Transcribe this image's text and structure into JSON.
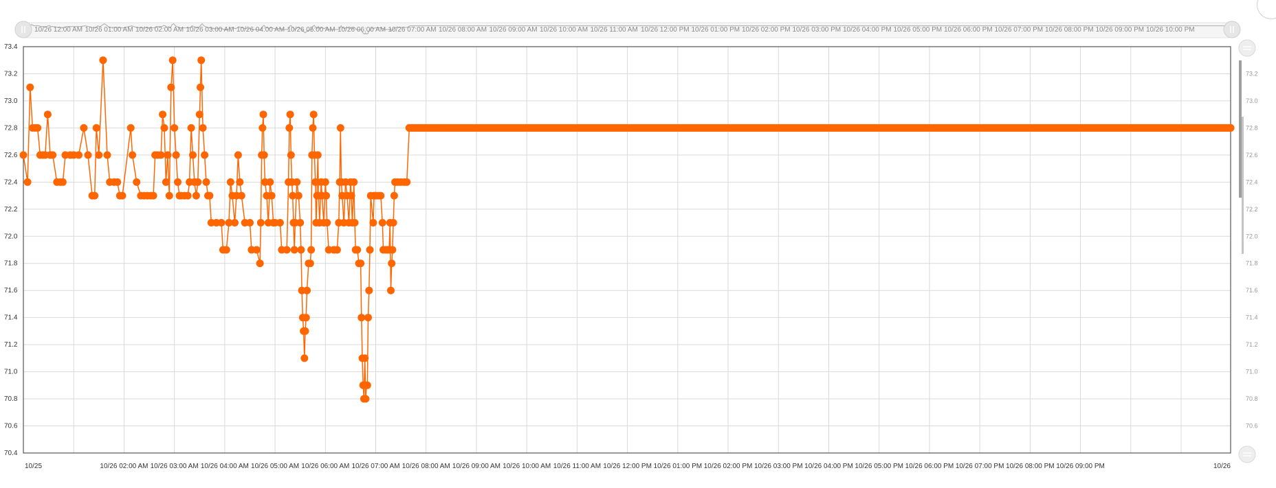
{
  "chart_data": {
    "type": "line",
    "title": "",
    "xlabel": "",
    "ylabel": "",
    "series_color": "#ff6600",
    "ylim": [
      70.4,
      73.4
    ],
    "xlim": [
      "10/26 12:00 AM",
      "10/26 11:59 PM"
    ],
    "y_ticks": [
      "73.4",
      "73.2",
      "73.0",
      "72.8",
      "72.6",
      "72.4",
      "72.2",
      "72.0",
      "71.8",
      "71.6",
      "71.4",
      "71.2",
      "71.0",
      "70.8",
      "70.6",
      "70.4"
    ],
    "right_ticks": [
      "73.2",
      "73.0",
      "72.8",
      "72.6",
      "72.4",
      "72.2",
      "72.0",
      "71.8",
      "71.6",
      "71.4",
      "71.2",
      "71.0",
      "70.8",
      "70.6"
    ],
    "x_tick_labels": [
      {
        "t": "10/25 12:00 AM",
        "label": "10/25"
      },
      {
        "t": "10/26 02:00 AM",
        "label": "10/26 02:00 AM"
      },
      {
        "t": "10/26 03:00 AM",
        "label": "10/26 03:00 AM"
      },
      {
        "t": "10/26 04:00 AM",
        "label": "10/26 04:00 AM"
      },
      {
        "t": "10/26 05:00 AM",
        "label": "10/26 05:00 AM"
      },
      {
        "t": "10/26 06:00 AM",
        "label": "10/26 06:00 AM"
      },
      {
        "t": "10/26 07:00 AM",
        "label": "10/26 07:00 AM"
      },
      {
        "t": "10/26 08:00 AM",
        "label": "10/26 08:00 AM"
      },
      {
        "t": "10/26 09:00 AM",
        "label": "10/26 09:00 AM"
      },
      {
        "t": "10/26 10:00 AM",
        "label": "10/26 10:00 AM"
      },
      {
        "t": "10/26 11:00 AM",
        "label": "10/26 11:00 AM"
      },
      {
        "t": "10/26 12:00 PM",
        "label": "10/26 12:00 PM"
      },
      {
        "t": "10/26 01:00 PM",
        "label": "10/26 01:00 PM"
      },
      {
        "t": "10/26 02:00 PM",
        "label": "10/26 02:00 PM"
      },
      {
        "t": "10/26 03:00 PM",
        "label": "10/26 03:00 PM"
      },
      {
        "t": "10/26 04:00 PM",
        "label": "10/26 04:00 PM"
      },
      {
        "t": "10/26 05:00 PM",
        "label": "10/26 05:00 PM"
      },
      {
        "t": "10/26 06:00 PM",
        "label": "10/26 06:00 PM"
      },
      {
        "t": "10/26 07:00 PM",
        "label": "10/26 07:00 PM"
      },
      {
        "t": "10/26 08:00 PM",
        "label": "10/26 08:00 PM"
      },
      {
        "t": "10/26 09:00 PM",
        "label": "10/26 09:00 PM"
      },
      {
        "t": "10/27 12:00 AM",
        "label": "10/26"
      }
    ],
    "navigator_labels": [
      "10/26 12:00 AM",
      "10/26 01:00 AM",
      "10/26 02:00 AM",
      "10/26 03:00 AM",
      "10/26 04:00 AM",
      "10/26 05:00 AM",
      "10/26 06:00 AM",
      "10/26 07:00 AM",
      "10/26 08:00 AM",
      "10/26 09:00 AM",
      "10/26 10:00 AM",
      "10/26 11:00 AM",
      "10/26 12:00 PM",
      "10/26 01:00 PM",
      "10/26 02:00 PM",
      "10/26 03:00 PM",
      "10/26 04:00 PM",
      "10/26 05:00 PM",
      "10/26 06:00 PM",
      "10/26 07:00 PM",
      "10/26 08:00 PM",
      "10/26 09:00 PM",
      "10/26 10:00 PM"
    ],
    "series": [
      {
        "values": [
          [
            "10/26 12:00 AM",
            72.6
          ],
          [
            "10/26 12:05 AM",
            72.4
          ],
          [
            "10/26 12:08 AM",
            73.1
          ],
          [
            "10/26 12:11 AM",
            72.8
          ],
          [
            "10/26 12:14 AM",
            72.8
          ],
          [
            "10/26 12:17 AM",
            72.8
          ],
          [
            "10/26 12:20 AM",
            72.6
          ],
          [
            "10/26 12:23 AM",
            72.6
          ],
          [
            "10/26 12:26 AM",
            72.6
          ],
          [
            "10/26 12:29 AM",
            72.9
          ],
          [
            "10/26 12:32 AM",
            72.6
          ],
          [
            "10/26 12:35 AM",
            72.6
          ],
          [
            "10/26 12:40 AM",
            72.4
          ],
          [
            "10/26 12:44 AM",
            72.4
          ],
          [
            "10/26 12:47 AM",
            72.4
          ],
          [
            "10/26 12:50 AM",
            72.6
          ],
          [
            "10/26 12:56 AM",
            72.6
          ],
          [
            "10/26 01:00 AM",
            72.6
          ],
          [
            "10/26 01:06 AM",
            72.6
          ],
          [
            "10/26 01:12 AM",
            72.8
          ],
          [
            "10/26 01:17 AM",
            72.6
          ],
          [
            "10/26 01:22 AM",
            72.3
          ],
          [
            "10/26 01:25 AM",
            72.3
          ],
          [
            "10/26 01:27 AM",
            72.8
          ],
          [
            "10/26 01:30 AM",
            72.6
          ],
          [
            "10/26 01:35 AM",
            73.3
          ],
          [
            "10/26 01:40 AM",
            72.6
          ],
          [
            "10/26 01:43 AM",
            72.4
          ],
          [
            "10/26 01:48 AM",
            72.4
          ],
          [
            "10/26 01:52 AM",
            72.4
          ],
          [
            "10/26 01:55 AM",
            72.3
          ],
          [
            "10/26 01:58 AM",
            72.3
          ],
          [
            "10/26 02:08 AM",
            72.8
          ],
          [
            "10/26 02:10 AM",
            72.6
          ],
          [
            "10/26 02:15 AM",
            72.4
          ],
          [
            "10/26 02:20 AM",
            72.3
          ],
          [
            "10/26 02:24 AM",
            72.3
          ],
          [
            "10/26 02:28 AM",
            72.3
          ],
          [
            "10/26 02:32 AM",
            72.3
          ],
          [
            "10/26 02:35 AM",
            72.3
          ],
          [
            "10/26 02:37 AM",
            72.6
          ],
          [
            "10/26 02:40 AM",
            72.6
          ],
          [
            "10/26 02:44 AM",
            72.6
          ],
          [
            "10/26 02:46 AM",
            72.9
          ],
          [
            "10/26 02:48 AM",
            72.8
          ],
          [
            "10/26 02:50 AM",
            72.4
          ],
          [
            "10/26 02:52 AM",
            72.6
          ],
          [
            "10/26 02:54 AM",
            72.3
          ],
          [
            "10/26 02:56 AM",
            73.1
          ],
          [
            "10/26 02:58 AM",
            73.3
          ],
          [
            "10/26 03:00 AM",
            72.8
          ],
          [
            "10/26 03:02 AM",
            72.6
          ],
          [
            "10/26 03:04 AM",
            72.4
          ],
          [
            "10/26 03:06 AM",
            72.3
          ],
          [
            "10/26 03:08 AM",
            72.3
          ],
          [
            "10/26 03:12 AM",
            72.3
          ],
          [
            "10/26 03:16 AM",
            72.3
          ],
          [
            "10/26 03:18 AM",
            72.4
          ],
          [
            "10/26 03:20 AM",
            72.8
          ],
          [
            "10/26 03:22 AM",
            72.6
          ],
          [
            "10/26 03:24 AM",
            72.4
          ],
          [
            "10/26 03:26 AM",
            72.3
          ],
          [
            "10/26 03:28 AM",
            72.4
          ],
          [
            "10/26 03:30 AM",
            72.9
          ],
          [
            "10/26 03:31 AM",
            73.1
          ],
          [
            "10/26 03:32 AM",
            73.3
          ],
          [
            "10/26 03:34 AM",
            72.8
          ],
          [
            "10/26 03:36 AM",
            72.6
          ],
          [
            "10/26 03:38 AM",
            72.4
          ],
          [
            "10/26 03:40 AM",
            72.3
          ],
          [
            "10/26 03:42 AM",
            72.3
          ],
          [
            "10/26 03:44 AM",
            72.1
          ],
          [
            "10/26 03:50 AM",
            72.1
          ],
          [
            "10/26 03:56 AM",
            72.1
          ],
          [
            "10/26 03:58 AM",
            71.9
          ],
          [
            "10/26 04:02 AM",
            71.9
          ],
          [
            "10/26 04:05 AM",
            72.1
          ],
          [
            "10/26 04:07 AM",
            72.4
          ],
          [
            "10/26 04:09 AM",
            72.3
          ],
          [
            "10/26 04:12 AM",
            72.1
          ],
          [
            "10/26 04:14 AM",
            72.3
          ],
          [
            "10/26 04:16 AM",
            72.6
          ],
          [
            "10/26 04:18 AM",
            72.4
          ],
          [
            "10/26 04:20 AM",
            72.3
          ],
          [
            "10/26 04:24 AM",
            72.1
          ],
          [
            "10/26 04:30 AM",
            72.1
          ],
          [
            "10/26 04:32 AM",
            71.9
          ],
          [
            "10/26 04:38 AM",
            71.9
          ],
          [
            "10/26 04:42 AM",
            71.8
          ],
          [
            "10/26 04:43 AM",
            72.1
          ],
          [
            "10/26 04:44 AM",
            72.6
          ],
          [
            "10/26 04:45 AM",
            72.8
          ],
          [
            "10/26 04:46 AM",
            72.9
          ],
          [
            "10/26 04:47 AM",
            72.6
          ],
          [
            "10/26 04:48 AM",
            72.4
          ],
          [
            "10/26 04:50 AM",
            72.3
          ],
          [
            "10/26 04:52 AM",
            72.1
          ],
          [
            "10/26 04:54 AM",
            72.4
          ],
          [
            "10/26 04:56 AM",
            72.3
          ],
          [
            "10/26 04:58 AM",
            72.1
          ],
          [
            "10/26 05:00 AM",
            72.1
          ],
          [
            "10/26 05:06 AM",
            72.1
          ],
          [
            "10/26 05:08 AM",
            71.9
          ],
          [
            "10/26 05:14 AM",
            71.9
          ],
          [
            "10/26 05:16 AM",
            72.4
          ],
          [
            "10/26 05:17 AM",
            72.8
          ],
          [
            "10/26 05:18 AM",
            72.9
          ],
          [
            "10/26 05:19 AM",
            72.6
          ],
          [
            "10/26 05:20 AM",
            72.4
          ],
          [
            "10/26 05:21 AM",
            72.3
          ],
          [
            "10/26 05:22 AM",
            72.1
          ],
          [
            "10/26 05:23 AM",
            71.9
          ],
          [
            "10/26 05:24 AM",
            72.1
          ],
          [
            "10/26 05:26 AM",
            72.4
          ],
          [
            "10/26 05:28 AM",
            72.3
          ],
          [
            "10/26 05:30 AM",
            72.1
          ],
          [
            "10/26 05:31 AM",
            71.9
          ],
          [
            "10/26 05:32 AM",
            71.6
          ],
          [
            "10/26 05:33 AM",
            71.4
          ],
          [
            "10/26 05:34 AM",
            71.3
          ],
          [
            "10/26 05:35 AM",
            71.1
          ],
          [
            "10/26 05:36 AM",
            71.3
          ],
          [
            "10/26 05:37 AM",
            71.4
          ],
          [
            "10/26 05:38 AM",
            71.6
          ],
          [
            "10/26 05:40 AM",
            71.8
          ],
          [
            "10/26 05:42 AM",
            71.8
          ],
          [
            "10/26 05:43 AM",
            71.9
          ],
          [
            "10/26 05:44 AM",
            72.6
          ],
          [
            "10/26 05:45 AM",
            72.8
          ],
          [
            "10/26 05:46 AM",
            72.9
          ],
          [
            "10/26 05:47 AM",
            72.6
          ],
          [
            "10/26 05:48 AM",
            72.4
          ],
          [
            "10/26 05:49 AM",
            72.1
          ],
          [
            "10/26 05:50 AM",
            72.3
          ],
          [
            "10/26 05:51 AM",
            72.6
          ],
          [
            "10/26 05:52 AM",
            72.3
          ],
          [
            "10/26 05:53 AM",
            72.1
          ],
          [
            "10/26 05:55 AM",
            72.4
          ],
          [
            "10/26 05:56 AM",
            72.3
          ],
          [
            "10/26 05:58 AM",
            72.1
          ],
          [
            "10/26 06:00 AM",
            72.4
          ],
          [
            "10/26 06:01 AM",
            72.3
          ],
          [
            "10/26 06:02 AM",
            72.1
          ],
          [
            "10/26 06:04 AM",
            71.9
          ],
          [
            "10/26 06:10 AM",
            71.9
          ],
          [
            "10/26 06:14 AM",
            71.9
          ],
          [
            "10/26 06:16 AM",
            72.1
          ],
          [
            "10/26 06:17 AM",
            72.4
          ],
          [
            "10/26 06:18 AM",
            72.8
          ],
          [
            "10/26 06:19 AM",
            72.4
          ],
          [
            "10/26 06:20 AM",
            72.3
          ],
          [
            "10/26 06:22 AM",
            72.1
          ],
          [
            "10/26 06:24 AM",
            72.4
          ],
          [
            "10/26 06:26 AM",
            72.3
          ],
          [
            "10/26 06:28 AM",
            72.1
          ],
          [
            "10/26 06:30 AM",
            72.4
          ],
          [
            "10/26 06:31 AM",
            72.3
          ],
          [
            "10/26 06:32 AM",
            72.1
          ],
          [
            "10/26 06:34 AM",
            72.4
          ],
          [
            "10/26 06:35 AM",
            72.1
          ],
          [
            "10/26 06:36 AM",
            71.9
          ],
          [
            "10/26 06:38 AM",
            71.9
          ],
          [
            "10/26 06:40 AM",
            71.8
          ],
          [
            "10/26 06:42 AM",
            71.8
          ],
          [
            "10/26 06:43 AM",
            71.4
          ],
          [
            "10/26 06:44 AM",
            71.1
          ],
          [
            "10/26 06:45 AM",
            70.9
          ],
          [
            "10/26 06:46 AM",
            70.8
          ],
          [
            "10/26 06:47 AM",
            71.1
          ],
          [
            "10/26 06:48 AM",
            70.8
          ],
          [
            "10/26 06:49 AM",
            70.9
          ],
          [
            "10/26 06:50 AM",
            70.9
          ],
          [
            "10/26 06:51 AM",
            71.4
          ],
          [
            "10/26 06:52 AM",
            71.6
          ],
          [
            "10/26 06:53 AM",
            71.9
          ],
          [
            "10/26 06:54 AM",
            72.3
          ],
          [
            "10/26 06:57 AM",
            72.1
          ],
          [
            "10/26 06:58 AM",
            72.3
          ],
          [
            "10/26 07:00 AM",
            72.3
          ],
          [
            "10/26 07:03 AM",
            72.3
          ],
          [
            "10/26 07:06 AM",
            72.3
          ],
          [
            "10/26 07:08 AM",
            72.1
          ],
          [
            "10/26 07:09 AM",
            71.9
          ],
          [
            "10/26 07:12 AM",
            71.9
          ],
          [
            "10/26 07:14 AM",
            71.9
          ],
          [
            "10/26 07:16 AM",
            71.9
          ],
          [
            "10/26 07:17 AM",
            72.1
          ],
          [
            "10/26 07:18 AM",
            71.6
          ],
          [
            "10/26 07:19 AM",
            71.8
          ],
          [
            "10/26 07:20 AM",
            71.9
          ],
          [
            "10/26 07:21 AM",
            72.1
          ],
          [
            "10/26 07:22 AM",
            72.3
          ],
          [
            "10/26 07:23 AM",
            72.4
          ],
          [
            "10/26 07:26 AM",
            72.4
          ],
          [
            "10/26 07:30 AM",
            72.4
          ],
          [
            "10/26 07:34 AM",
            72.4
          ],
          [
            "10/26 07:37 AM",
            72.4
          ],
          [
            "10/26 07:40 AM",
            72.8
          ],
          [
            "10/26 11:59 PM",
            72.8
          ]
        ]
      }
    ]
  }
}
